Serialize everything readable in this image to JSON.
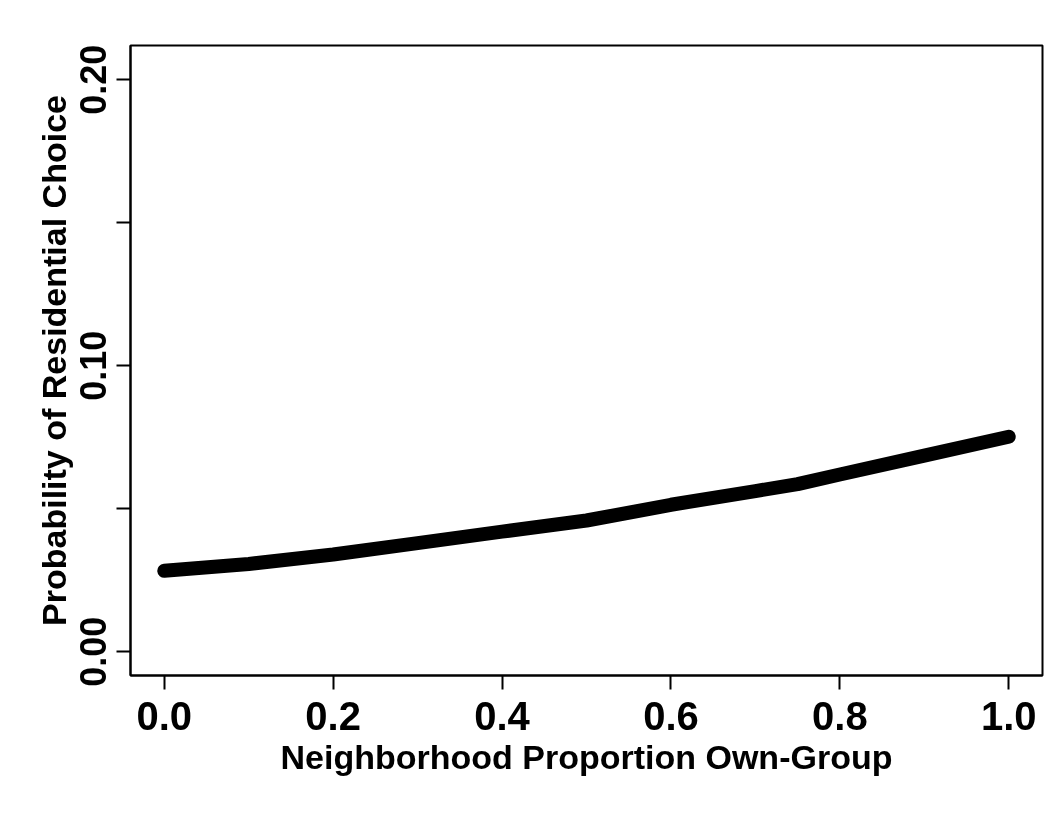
{
  "chart_data": {
    "type": "line",
    "xlabel": "Neighborhood Proportion Own-Group",
    "ylabel": "Probability of Residential Choice",
    "x": [
      0.0,
      0.1,
      0.2,
      0.3,
      0.4,
      0.5,
      0.6,
      0.7,
      0.75,
      0.8,
      0.9,
      1.0
    ],
    "series": [
      {
        "color": "#000000",
        "values": [
          0.0283,
          0.0307,
          0.034,
          0.038,
          0.042,
          0.0459,
          0.0514,
          0.0562,
          0.0586,
          0.062,
          0.0686,
          0.0752
        ]
      }
    ],
    "xlim": [
      -0.04,
      1.04
    ],
    "ylim": [
      -0.0083,
      0.212
    ],
    "xticks": [
      {
        "value": 0,
        "label": "0.0"
      },
      {
        "value": 0.2,
        "label": "0.2"
      },
      {
        "value": 0.4,
        "label": "0.4"
      },
      {
        "value": 0.6,
        "label": "0.6"
      },
      {
        "value": 0.8,
        "label": "0.8"
      },
      {
        "value": 1,
        "label": "1.0"
      }
    ],
    "yticks": [
      {
        "value": 0,
        "label": "0.00"
      },
      {
        "value": 0.05,
        "label": null
      },
      {
        "value": 0.1,
        "label": "0.10"
      },
      {
        "value": 0.15,
        "label": null
      },
      {
        "value": 0.2,
        "label": "0.20"
      }
    ],
    "grid": false,
    "marker": "none",
    "line_style": "solid"
  }
}
